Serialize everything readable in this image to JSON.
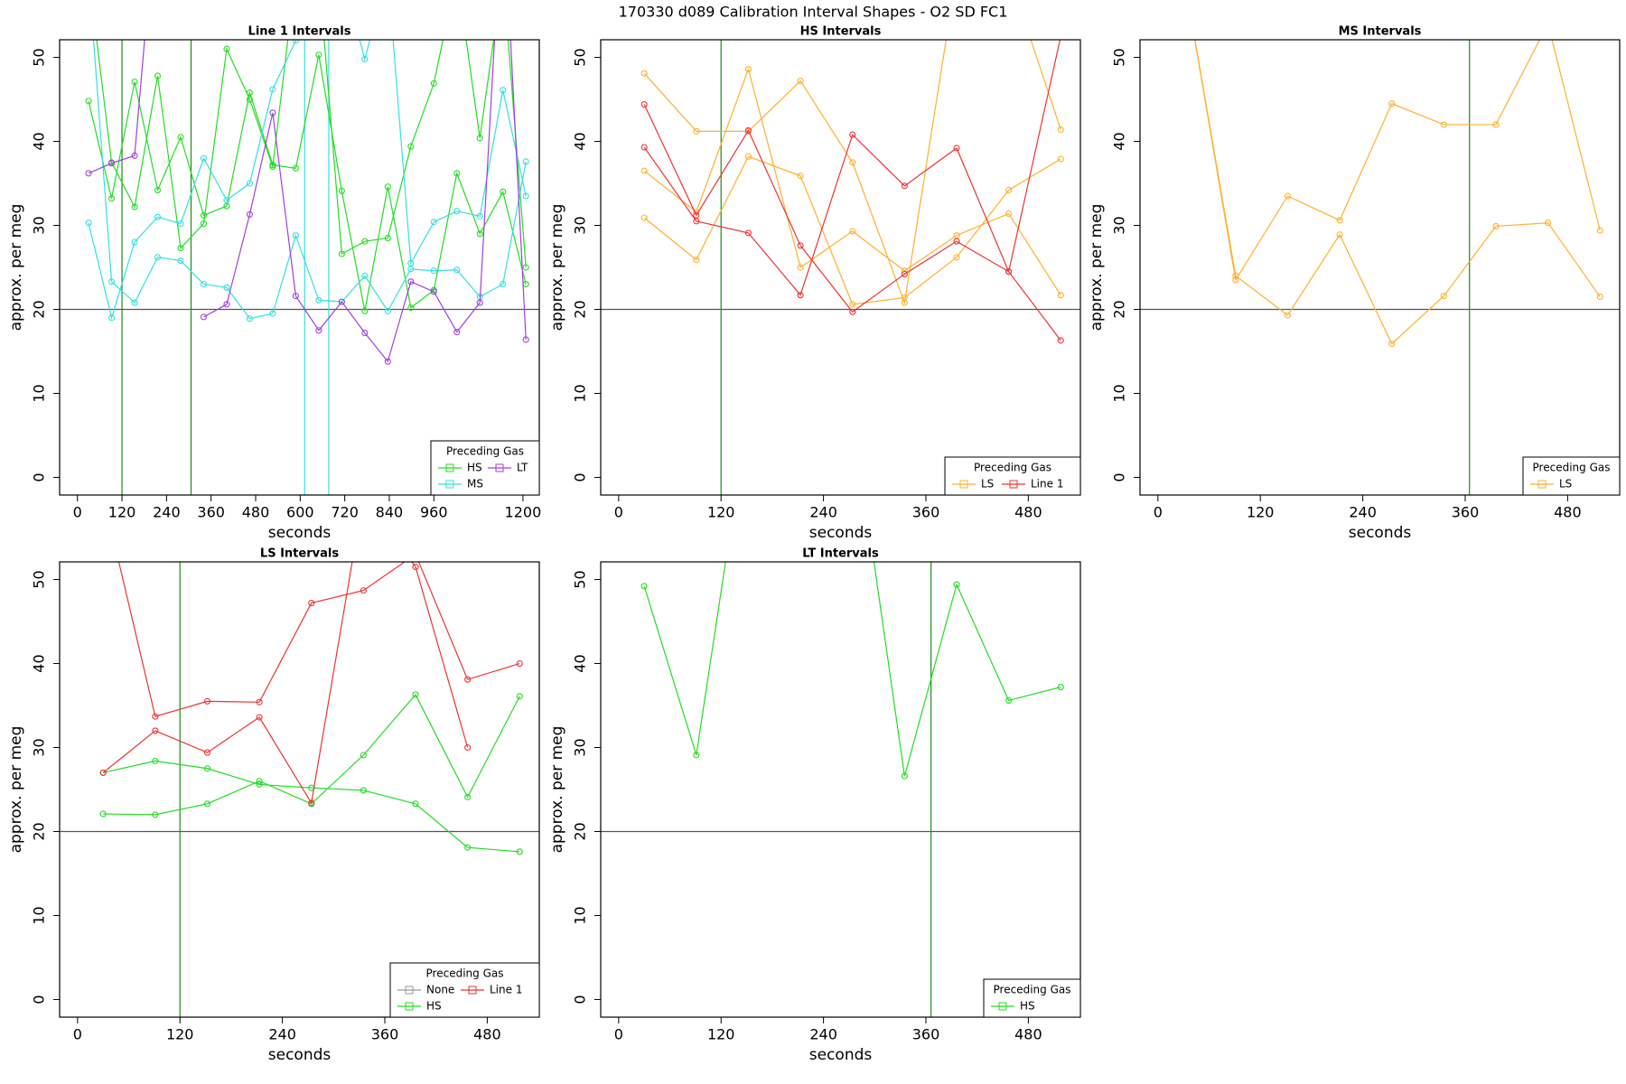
{
  "title": "170330    d089   Calibration Interval Shapes - O2 SD FC1",
  "chart_data": [
    {
      "type": "line",
      "title": "Line 1 Intervals",
      "xlabel": "seconds",
      "ylabel": "approx. per meg",
      "xlim": [
        -48,
        1244
      ],
      "ylim": [
        -2.1,
        52.1
      ],
      "xticks": [
        0,
        120,
        240,
        360,
        480,
        600,
        720,
        840,
        960,
        1200
      ],
      "yticks": [
        0,
        10,
        20,
        30,
        40,
        50
      ],
      "hline": 20,
      "hline_color": "#555555",
      "vlines": [
        {
          "x": 120,
          "color": "#1a8c1a"
        },
        {
          "x": 306,
          "color": "#1a8c1a"
        },
        {
          "x": 612,
          "color": "#33e0e0"
        },
        {
          "x": 677,
          "color": "#33e0e0"
        }
      ],
      "legend_title": "Preceding Gas",
      "legend_ncol": 2,
      "series": [
        {
          "name": "HS",
          "color": "#22dd22",
          "lines": [
            {
              "x": [
                30,
                92,
                154,
                216,
                278,
                340,
                402,
                464,
                526,
                588,
                650,
                712,
                774,
                836,
                898,
                960,
                1022,
                1084,
                1146,
                1208
              ],
              "values": [
                44.8,
                33.2,
                47.1,
                34.2,
                40.5,
                31.2,
                32.3,
                45.8,
                37.2,
                36.8,
                50.3,
                34.1,
                19.8,
                34.6,
                20.2,
                22.3,
                36.2,
                29.0,
                34.0,
                23.0
              ]
            },
            {
              "x": [
                30,
                92,
                154,
                216,
                278,
                340,
                402,
                464,
                526,
                588,
                650,
                712,
                774,
                836,
                898,
                960,
                1022,
                1084,
                1146,
                1208
              ],
              "values": [
                60,
                37.5,
                32.2,
                47.8,
                27.3,
                30.2,
                51.0,
                45.0,
                37.0,
                60,
                60,
                26.6,
                28.1,
                28.5,
                39.4,
                46.9,
                60,
                40.4,
                60,
                25.0
              ]
            }
          ]
        },
        {
          "name": "MS",
          "color": "#33e0e0",
          "lines": [
            {
              "x": [
                30,
                92,
                154,
                216,
                278,
                340,
                402,
                464,
                526,
                588,
                650,
                712,
                774,
                836,
                898,
                960,
                1022,
                1084,
                1146,
                1208
              ],
              "values": [
                30.3,
                19.0,
                28.0,
                31.0,
                30.2,
                38.0,
                33.0,
                35.0,
                46.2,
                52.0,
                60,
                60,
                49.8,
                60,
                25.5,
                30.4,
                31.7,
                31.1,
                46.1,
                33.5
              ]
            },
            {
              "x": [
                30,
                92,
                154,
                216,
                278,
                340,
                402,
                464,
                526,
                588,
                650,
                712,
                774,
                836,
                898,
                960,
                1022,
                1084,
                1146,
                1208
              ],
              "values": [
                60,
                23.3,
                20.8,
                26.2,
                25.8,
                23.0,
                22.6,
                18.9,
                19.5,
                28.8,
                21.1,
                20.9,
                24.0,
                19.8,
                24.8,
                24.6,
                24.7,
                21.5,
                23.0,
                37.6
              ]
            }
          ]
        },
        {
          "name": "LT",
          "color": "#a040e0",
          "lines": [
            {
              "x": [
                30,
                92,
                154,
                216
              ],
              "values": [
                36.2,
                37.4,
                38.3,
                70
              ]
            },
            {
              "x": [
                340,
                402,
                464,
                526,
                588,
                650,
                712,
                774,
                836,
                898,
                960,
                1022,
                1084,
                1146,
                1208
              ],
              "values": [
                19.1,
                20.6,
                31.3,
                43.4,
                21.6,
                17.5,
                20.9,
                17.2,
                13.8,
                23.3,
                22.1,
                17.3,
                20.8,
                70,
                16.4
              ]
            }
          ]
        }
      ]
    },
    {
      "type": "line",
      "title": "HS Intervals",
      "xlabel": "seconds",
      "ylabel": "approx. per meg",
      "xlim": [
        -21,
        541
      ],
      "ylim": [
        -2.1,
        52.1
      ],
      "xticks": [
        0,
        120,
        240,
        360,
        480
      ],
      "yticks": [
        0,
        10,
        20,
        30,
        40,
        50
      ],
      "hline": 20,
      "hline_color": "#555555",
      "vlines": [
        {
          "x": 120,
          "color": "#1a8c1a"
        }
      ],
      "legend_title": "Preceding Gas",
      "legend_ncol": 2,
      "series": [
        {
          "name": "LS",
          "color": "#ffb02e",
          "lines": [
            {
              "x": [
                30,
                91,
                152,
                213,
                274,
                335,
                396,
                457,
                518
              ],
              "values": [
                48.1,
                41.2,
                41.2,
                47.2,
                37.5,
                20.8,
                60,
                60,
                41.4
              ]
            },
            {
              "x": [
                30,
                91,
                152,
                213,
                274,
                335,
                396,
                457,
                518
              ],
              "values": [
                36.5,
                31.6,
                48.6,
                25.0,
                29.3,
                24.6,
                28.8,
                31.4,
                21.7
              ]
            },
            {
              "x": [
                30,
                91,
                152,
                213,
                274,
                335,
                396,
                457,
                518
              ],
              "values": [
                30.9,
                25.9,
                38.2,
                35.9,
                20.6,
                21.4,
                26.2,
                34.2,
                37.9
              ]
            }
          ]
        },
        {
          "name": "Line 1",
          "color": "#ee3333",
          "lines": [
            {
              "x": [
                30,
                91,
                152,
                213,
                274,
                335,
                396,
                457,
                518
              ],
              "values": [
                44.4,
                31.2,
                41.3,
                27.6,
                19.7,
                24.2,
                28.1,
                24.5,
                16.3
              ]
            },
            {
              "x": [
                30,
                91,
                152,
                213,
                274,
                335,
                396,
                457,
                518
              ],
              "values": [
                39.3,
                30.5,
                29.1,
                21.7,
                40.8,
                34.7,
                39.2,
                24.5,
                52.5
              ]
            }
          ]
        }
      ]
    },
    {
      "type": "line",
      "title": "MS Intervals",
      "xlabel": "seconds",
      "ylabel": "approx. per meg",
      "xlim": [
        -21,
        541
      ],
      "ylim": [
        -2.1,
        52.1
      ],
      "xticks": [
        0,
        120,
        240,
        360,
        480
      ],
      "yticks": [
        0,
        10,
        20,
        30,
        40,
        50
      ],
      "hline": 20,
      "hline_color": "#555555",
      "vlines": [
        {
          "x": 365,
          "color": "#1a8c1a"
        }
      ],
      "legend_title": "Preceding Gas",
      "legend_ncol": 1,
      "series": [
        {
          "name": "LS",
          "color": "#ffb02e",
          "lines": [
            {
              "x": [
                30,
                91,
                152,
                213,
                274,
                335,
                396,
                457,
                518
              ],
              "values": [
                60,
                23.5,
                33.5,
                30.6,
                44.5,
                42.0,
                42.0,
                54,
                29.4
              ]
            },
            {
              "x": [
                30,
                91,
                152,
                213,
                274,
                335,
                396,
                457,
                518
              ],
              "values": [
                60,
                24.0,
                19.3,
                28.9,
                15.9,
                21.6,
                29.9,
                30.3,
                21.5
              ]
            }
          ]
        }
      ]
    },
    {
      "type": "line",
      "title": "LS Intervals",
      "xlabel": "seconds",
      "ylabel": "approx. per meg",
      "xlim": [
        -21,
        541
      ],
      "ylim": [
        -2.1,
        52.1
      ],
      "xticks": [
        0,
        120,
        240,
        360,
        480
      ],
      "yticks": [
        0,
        10,
        20,
        30,
        40,
        50
      ],
      "hline": 20,
      "hline_color": "#555555",
      "vlines": [
        {
          "x": 120,
          "color": "#1a8c1a"
        }
      ],
      "legend_title": "Preceding Gas",
      "legend_ncol": 2,
      "series": [
        {
          "name": "None",
          "color": "#999999",
          "lines": [
            {
              "x": [
                30
              ],
              "values": [
                27.0
              ]
            },
            {
              "x": [
                274
              ],
              "values": [
                23.3
              ]
            }
          ]
        },
        {
          "name": "HS",
          "color": "#22dd22",
          "lines": [
            {
              "x": [
                30,
                91,
                152,
                213,
                274,
                335,
                396,
                457,
                518
              ],
              "values": [
                27.0,
                28.4,
                27.5,
                25.6,
                25.2,
                24.9,
                23.3,
                18.1,
                17.6
              ]
            },
            {
              "x": [
                30,
                91,
                152,
                213,
                274,
                335,
                396,
                457,
                518
              ],
              "values": [
                22.1,
                22.0,
                23.3,
                26.0,
                23.3,
                29.1,
                36.3,
                24.1,
                36.1
              ]
            }
          ]
        },
        {
          "name": "Line 1",
          "color": "#ee3333",
          "lines": [
            {
              "x": [
                30,
                91,
                152,
                213,
                274,
                335,
                396,
                457,
                518
              ],
              "values": [
                60,
                33.7,
                35.5,
                35.4,
                47.2,
                48.7,
                53,
                38.1,
                40.0
              ]
            },
            {
              "x": [
                30,
                91,
                152,
                213,
                274,
                335,
                396,
                457
              ],
              "values": [
                27.0,
                32.0,
                29.4,
                33.6,
                23.4,
                60,
                51.5,
                30.0
              ]
            }
          ]
        }
      ]
    },
    {
      "type": "line",
      "title": "LT Intervals",
      "xlabel": "seconds",
      "ylabel": "approx. per meg",
      "xlim": [
        -21,
        541
      ],
      "ylim": [
        -2.1,
        52.1
      ],
      "xticks": [
        0,
        120,
        240,
        360,
        480
      ],
      "yticks": [
        0,
        10,
        20,
        30,
        40,
        50
      ],
      "hline": 20,
      "hline_color": "#555555",
      "vlines": [
        {
          "x": 366,
          "color": "#1a8c1a"
        }
      ],
      "legend_title": "Preceding Gas",
      "legend_ncol": 1,
      "series": [
        {
          "name": "HS",
          "color": "#22dd22",
          "lines": [
            {
              "x": [
                30,
                91,
                152,
                274,
                335,
                396,
                457,
                518
              ],
              "values": [
                49.2,
                29.1,
                70,
                70,
                26.6,
                49.4,
                35.6,
                37.2
              ]
            }
          ]
        }
      ]
    }
  ]
}
